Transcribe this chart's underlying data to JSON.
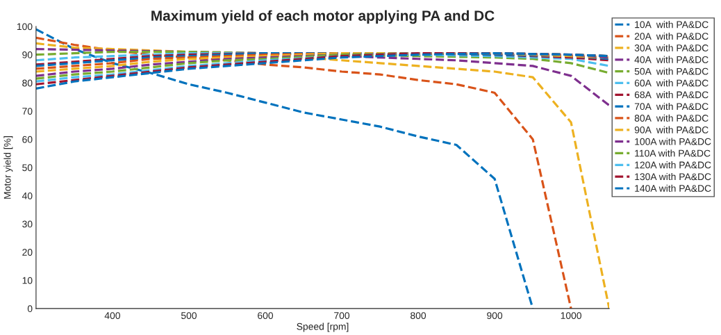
{
  "chart_data": {
    "type": "line",
    "title": "Maximum yield of each motor applying PA and DC",
    "xlabel": "Speed [rpm]",
    "ylabel": "Motor yield [%]",
    "xlim": [
      300,
      1050
    ],
    "xticks": [
      400,
      500,
      600,
      700,
      800,
      900,
      1000
    ],
    "ylim": [
      0,
      100
    ],
    "yticks": [
      0,
      10,
      20,
      30,
      40,
      50,
      60,
      70,
      80,
      90,
      100
    ],
    "grid": false,
    "legend": "right",
    "line_style": "dashed",
    "marker": "none",
    "series": [
      {
        "name": "10A  with PA&DC",
        "color": "#0072bd",
        "x": [
          300,
          350,
          400,
          450,
          500,
          550,
          600,
          650,
          700,
          750,
          800,
          850,
          900,
          950
        ],
        "values": [
          99,
          92,
          87,
          83.5,
          79.5,
          76.5,
          73,
          69.5,
          67,
          64.5,
          61,
          58,
          46,
          0
        ]
      },
      {
        "name": "20A  with PA&DC",
        "color": "#d95319",
        "x": [
          300,
          350,
          400,
          450,
          500,
          550,
          600,
          650,
          700,
          750,
          800,
          850,
          900,
          950,
          1000
        ],
        "values": [
          96,
          93.5,
          91.5,
          90,
          89,
          88,
          86.5,
          85.5,
          84,
          83,
          81,
          79.5,
          76.5,
          60,
          0
        ]
      },
      {
        "name": "30A  with PA&DC",
        "color": "#edb120",
        "x": [
          300,
          350,
          400,
          450,
          500,
          550,
          600,
          650,
          700,
          750,
          800,
          850,
          900,
          950,
          1000,
          1050
        ],
        "values": [
          94,
          92.5,
          92,
          91.5,
          91,
          90.5,
          90,
          89,
          88,
          87,
          86,
          85,
          84,
          82,
          66,
          0
        ]
      },
      {
        "name": "40A  with PA&DC",
        "color": "#7e2f8e",
        "x": [
          300,
          400,
          500,
          600,
          700,
          800,
          850,
          900,
          950,
          1000,
          1050
        ],
        "values": [
          92,
          91.5,
          91,
          90.5,
          89.5,
          88.5,
          88,
          87,
          86,
          82.5,
          72
        ]
      },
      {
        "name": "50A  with PA&DC",
        "color": "#77ac30",
        "x": [
          300,
          350,
          400,
          500,
          600,
          700,
          800,
          900,
          950,
          1000,
          1050
        ],
        "values": [
          90,
          90.5,
          91,
          91,
          90.5,
          90,
          89.5,
          89,
          88.5,
          87,
          83.5
        ]
      },
      {
        "name": "60A  with PA&DC",
        "color": "#4dbeee",
        "x": [
          300,
          350,
          400,
          450,
          500,
          600,
          700,
          800,
          900,
          950,
          1000,
          1050
        ],
        "values": [
          88,
          89,
          89.5,
          90,
          90.5,
          90.5,
          90.5,
          90,
          89.5,
          89,
          88.5,
          86
        ]
      },
      {
        "name": "68A  with PA&DC",
        "color": "#a2142f",
        "x": [
          300,
          350,
          400,
          450,
          500,
          600,
          700,
          800,
          900,
          1000,
          1050
        ],
        "values": [
          86.5,
          87.5,
          88.5,
          89.5,
          90,
          90.5,
          90.5,
          90.5,
          90,
          89,
          88
        ]
      },
      {
        "name": "70A  with PA&DC",
        "color": "#0072bd",
        "x": [
          300,
          350,
          400,
          450,
          500,
          550,
          600,
          700,
          800,
          900,
          1000,
          1050
        ],
        "values": [
          86,
          87,
          88,
          89,
          89.5,
          90,
          90.5,
          90.5,
          90.5,
          90,
          89.5,
          88.5
        ]
      },
      {
        "name": "80A  with PA&DC",
        "color": "#d95319",
        "x": [
          300,
          350,
          400,
          450,
          500,
          550,
          600,
          700,
          800,
          900,
          1000,
          1050
        ],
        "values": [
          85,
          86,
          87,
          88.5,
          89,
          89.5,
          90,
          90.5,
          90.5,
          90.5,
          89.5,
          89
        ]
      },
      {
        "name": "90A  with PA&DC",
        "color": "#edb120",
        "x": [
          300,
          350,
          400,
          450,
          500,
          550,
          600,
          700,
          800,
          900,
          1000,
          1050
        ],
        "values": [
          84,
          85,
          86,
          87.5,
          88.5,
          89,
          89.5,
          90.5,
          90.5,
          90.5,
          89.5,
          89
        ]
      },
      {
        "name": "100A with PA&DC",
        "color": "#7e2f8e",
        "x": [
          300,
          350,
          400,
          450,
          500,
          550,
          600,
          700,
          800,
          900,
          1000,
          1050
        ],
        "values": [
          82.5,
          84,
          85,
          86.5,
          87.5,
          88.5,
          89,
          90,
          90.5,
          90.5,
          90,
          89
        ]
      },
      {
        "name": "110A with PA&DC",
        "color": "#77ac30",
        "x": [
          300,
          350,
          400,
          450,
          500,
          550,
          600,
          700,
          800,
          900,
          1000,
          1050
        ],
        "values": [
          81.5,
          83,
          84,
          85.5,
          87,
          88,
          88.5,
          90,
          90.5,
          90.5,
          90,
          89.5
        ]
      },
      {
        "name": "120A with PA&DC",
        "color": "#4dbeee",
        "x": [
          300,
          350,
          400,
          450,
          500,
          550,
          600,
          700,
          800,
          900,
          1000,
          1050
        ],
        "values": [
          80.5,
          82,
          83,
          84.5,
          86,
          87,
          88,
          89.5,
          90.5,
          90.5,
          90,
          89.5
        ]
      },
      {
        "name": "130A with PA&DC",
        "color": "#a2142f",
        "x": [
          300,
          350,
          400,
          450,
          500,
          550,
          600,
          700,
          800,
          900,
          1000,
          1050
        ],
        "values": [
          79.5,
          81,
          82.5,
          84,
          85.5,
          86.5,
          87.5,
          89.5,
          90.5,
          90.5,
          90,
          89.5
        ]
      },
      {
        "name": "140A with PA&DC",
        "color": "#0072bd",
        "x": [
          300,
          350,
          400,
          450,
          500,
          550,
          600,
          700,
          800,
          900,
          1000,
          1050
        ],
        "values": [
          78,
          80.5,
          82,
          83.5,
          85,
          86,
          87,
          89,
          90,
          90.5,
          90,
          89.5
        ]
      }
    ]
  }
}
